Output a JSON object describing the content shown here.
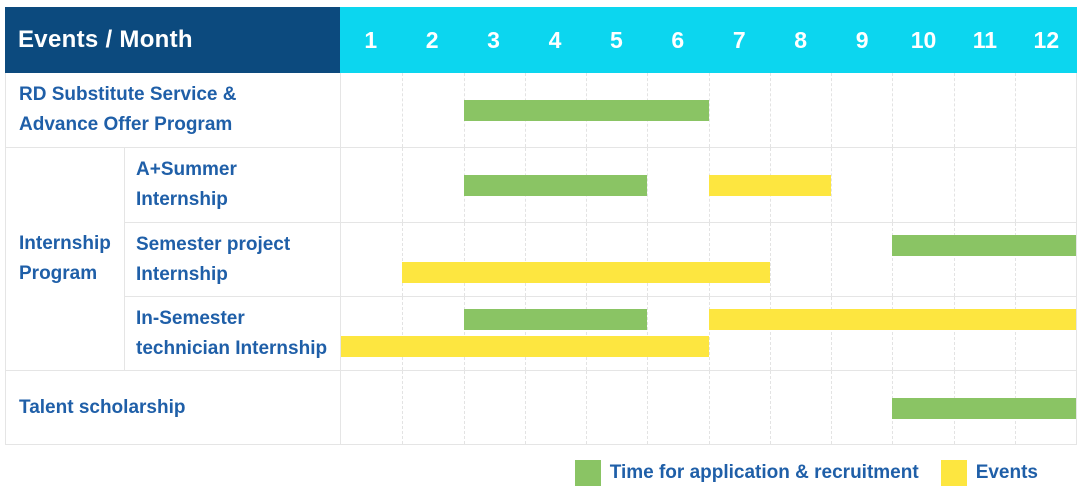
{
  "header": {
    "title": "Events / Month",
    "months": [
      "1",
      "2",
      "3",
      "4",
      "5",
      "6",
      "7",
      "8",
      "9",
      "10",
      "11",
      "12"
    ]
  },
  "colors": {
    "header_bg": "#0c4a7e",
    "months_bg": "#0cd6ef",
    "application": "#8ac464",
    "events": "#fde640",
    "label_text": "#1f5fa8",
    "grid_line": "#e3e3e3"
  },
  "legend": {
    "application_label": "Time for application & recruitment",
    "events_label": "Events"
  },
  "chart_data": {
    "type": "bar",
    "subtype": "gantt-schedule-table",
    "title": "Events / Month",
    "x_axis": {
      "label": "Month",
      "ticks": [
        1,
        2,
        3,
        4,
        5,
        6,
        7,
        8,
        9,
        10,
        11,
        12
      ],
      "range": [
        1,
        12
      ]
    },
    "grid": true,
    "legend_position": "bottom-right",
    "legend": [
      {
        "name": "Time for application & recruitment",
        "color": "#8ac464"
      },
      {
        "name": "Events",
        "color": "#fde640"
      }
    ],
    "rows": [
      {
        "group": null,
        "label": "RD Substitute Service & Advance Offer Program",
        "label_lines": [
          "RD Substitute Service &",
          "Advance Offer Program"
        ],
        "bars": [
          {
            "series": "Time for application & recruitment",
            "color_key": "application",
            "start_month": 3,
            "end_month": 6,
            "lane": "center"
          }
        ]
      },
      {
        "group": "Internship Program",
        "label": "A+Summer Internship",
        "label_lines": [
          "A+Summer",
          "Internship"
        ],
        "bars": [
          {
            "series": "Time for application & recruitment",
            "color_key": "application",
            "start_month": 3,
            "end_month": 5,
            "lane": "center"
          },
          {
            "series": "Events",
            "color_key": "events",
            "start_month": 7,
            "end_month": 8,
            "lane": "center"
          }
        ]
      },
      {
        "group": "Internship Program",
        "label": "Semester project Internship",
        "label_lines": [
          "Semester project",
          "Internship"
        ],
        "bars": [
          {
            "series": "Time for application & recruitment",
            "color_key": "application",
            "start_month": 10,
            "end_month": 12,
            "lane": "upper"
          },
          {
            "series": "Events",
            "color_key": "events",
            "start_month": 2,
            "end_month": 7,
            "lane": "lower"
          }
        ]
      },
      {
        "group": "Internship Program",
        "label": "In-Semester technician Internship",
        "label_lines": [
          "In-Semester",
          "technician Internship"
        ],
        "bars": [
          {
            "series": "Time for application & recruitment",
            "color_key": "application",
            "start_month": 3,
            "end_month": 5,
            "lane": "upper"
          },
          {
            "series": "Events",
            "color_key": "events",
            "start_month": 7,
            "end_month": 12,
            "lane": "upper"
          },
          {
            "series": "Events",
            "color_key": "events",
            "start_month": 1,
            "end_month": 6,
            "lane": "lower"
          }
        ]
      },
      {
        "group": null,
        "label": "Talent scholarship",
        "label_lines": [
          "Talent scholarship"
        ],
        "bars": [
          {
            "series": "Time for application & recruitment",
            "color_key": "application",
            "start_month": 10,
            "end_month": 12,
            "lane": "center"
          }
        ]
      }
    ],
    "group_labels": [
      {
        "name": "Internship Program",
        "label_lines": [
          "Internship",
          "Program"
        ],
        "row_span": [
          2,
          4
        ]
      }
    ]
  }
}
